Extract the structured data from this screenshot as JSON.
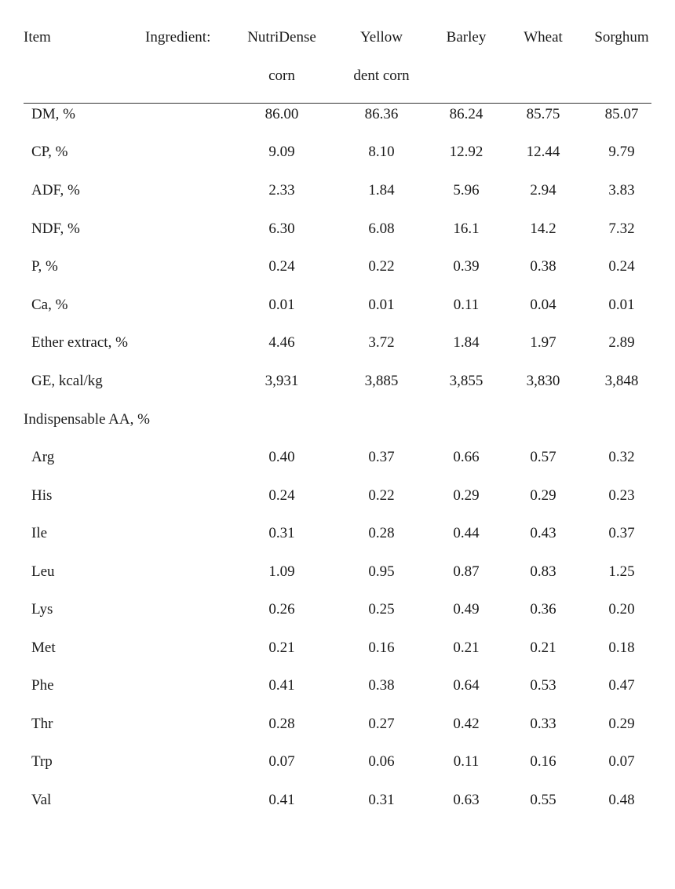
{
  "header": {
    "item": "Item",
    "ingredient": "Ingredient:",
    "columns": [
      {
        "line1": "NutriDense",
        "line2": "corn"
      },
      {
        "line1": "Yellow",
        "line2": "dent corn"
      },
      {
        "line1": "Barley",
        "line2": ""
      },
      {
        "line1": "Wheat",
        "line2": ""
      },
      {
        "line1": "Sorghum",
        "line2": ""
      }
    ]
  },
  "rows": [
    {
      "label": "DM, %",
      "values": [
        "86.00",
        "86.36",
        "86.24",
        "85.75",
        "85.07"
      ]
    },
    {
      "label": "CP, %",
      "values": [
        "9.09",
        "8.10",
        "12.92",
        "12.44",
        "9.79"
      ]
    },
    {
      "label": "ADF, %",
      "values": [
        "2.33",
        "1.84",
        "5.96",
        "2.94",
        "3.83"
      ]
    },
    {
      "label": "NDF, %",
      "values": [
        "6.30",
        "6.08",
        "16.1",
        "14.2",
        "7.32"
      ]
    },
    {
      "label": "P, %",
      "values": [
        "0.24",
        "0.22",
        "0.39",
        "0.38",
        "0.24"
      ]
    },
    {
      "label": "Ca, %",
      "values": [
        "0.01",
        "0.01",
        "0.11",
        "0.04",
        "0.01"
      ]
    },
    {
      "label": "Ether extract, %",
      "values": [
        "4.46",
        "3.72",
        "1.84",
        "1.97",
        "2.89"
      ]
    },
    {
      "label": "GE, kcal/kg",
      "values": [
        "3,931",
        "3,885",
        "3,855",
        "3,830",
        "3,848"
      ]
    }
  ],
  "section": {
    "label": "Indispensable AA, %"
  },
  "aa_rows": [
    {
      "label": "Arg",
      "values": [
        "0.40",
        "0.37",
        "0.66",
        "0.57",
        "0.32"
      ]
    },
    {
      "label": "His",
      "values": [
        "0.24",
        "0.22",
        "0.29",
        "0.29",
        "0.23"
      ]
    },
    {
      "label": "Ile",
      "values": [
        "0.31",
        "0.28",
        "0.44",
        "0.43",
        "0.37"
      ]
    },
    {
      "label": "Leu",
      "values": [
        "1.09",
        "0.95",
        "0.87",
        "0.83",
        "1.25"
      ]
    },
    {
      "label": "Lys",
      "values": [
        "0.26",
        "0.25",
        "0.49",
        "0.36",
        "0.20"
      ]
    },
    {
      "label": "Met",
      "values": [
        "0.21",
        "0.16",
        "0.21",
        "0.21",
        "0.18"
      ]
    },
    {
      "label": "Phe",
      "values": [
        "0.41",
        "0.38",
        "0.64",
        "0.53",
        "0.47"
      ]
    },
    {
      "label": "Thr",
      "values": [
        "0.28",
        "0.27",
        "0.42",
        "0.33",
        "0.29"
      ]
    },
    {
      "label": "Trp",
      "values": [
        "0.07",
        "0.06",
        "0.11",
        "0.16",
        "0.07"
      ]
    },
    {
      "label": "Val",
      "values": [
        "0.41",
        "0.31",
        "0.63",
        "0.55",
        "0.48"
      ]
    }
  ]
}
